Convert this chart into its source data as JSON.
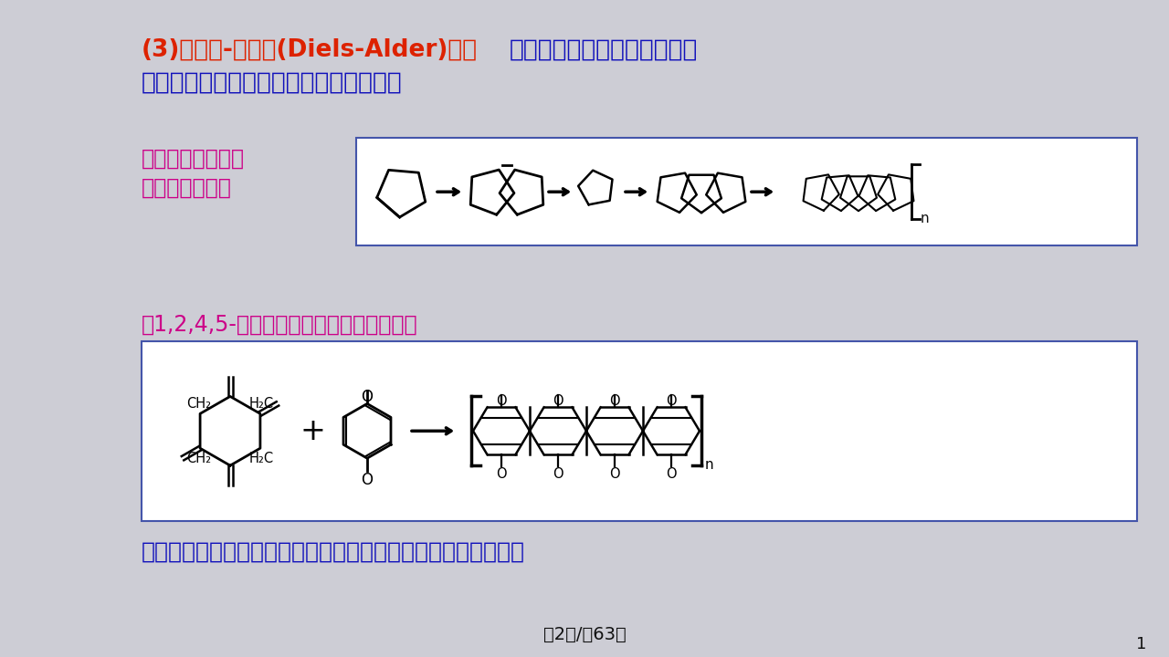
{
  "bg_color": "#cdcdd5",
  "title_orange": "(3)第尔斯-阿德尔(Diels-Alder)反应",
  "title_blue1": "是双键间的逐步加成，可制取",
  "title_line2": "耐高温材料，近年来受到了人们的重视。",
  "label1a": "最早是由环戊二烯",
  "label1b": "制得的低聚物：",
  "label2": "、1,2,4,5-四次甲基环已烷与对苯醜反应：",
  "text_bottom": "以上反应产物都是梯形高聚物，有独特的耐高温与耐氧化性能。",
  "footer": "第2页/兦63页",
  "page_num": "1",
  "col_orange": "#dd2200",
  "col_blue": "#1111bb",
  "col_magenta": "#cc0088",
  "col_black": "#111111",
  "col_white": "#ffffff",
  "col_box_border": "#4455aa"
}
